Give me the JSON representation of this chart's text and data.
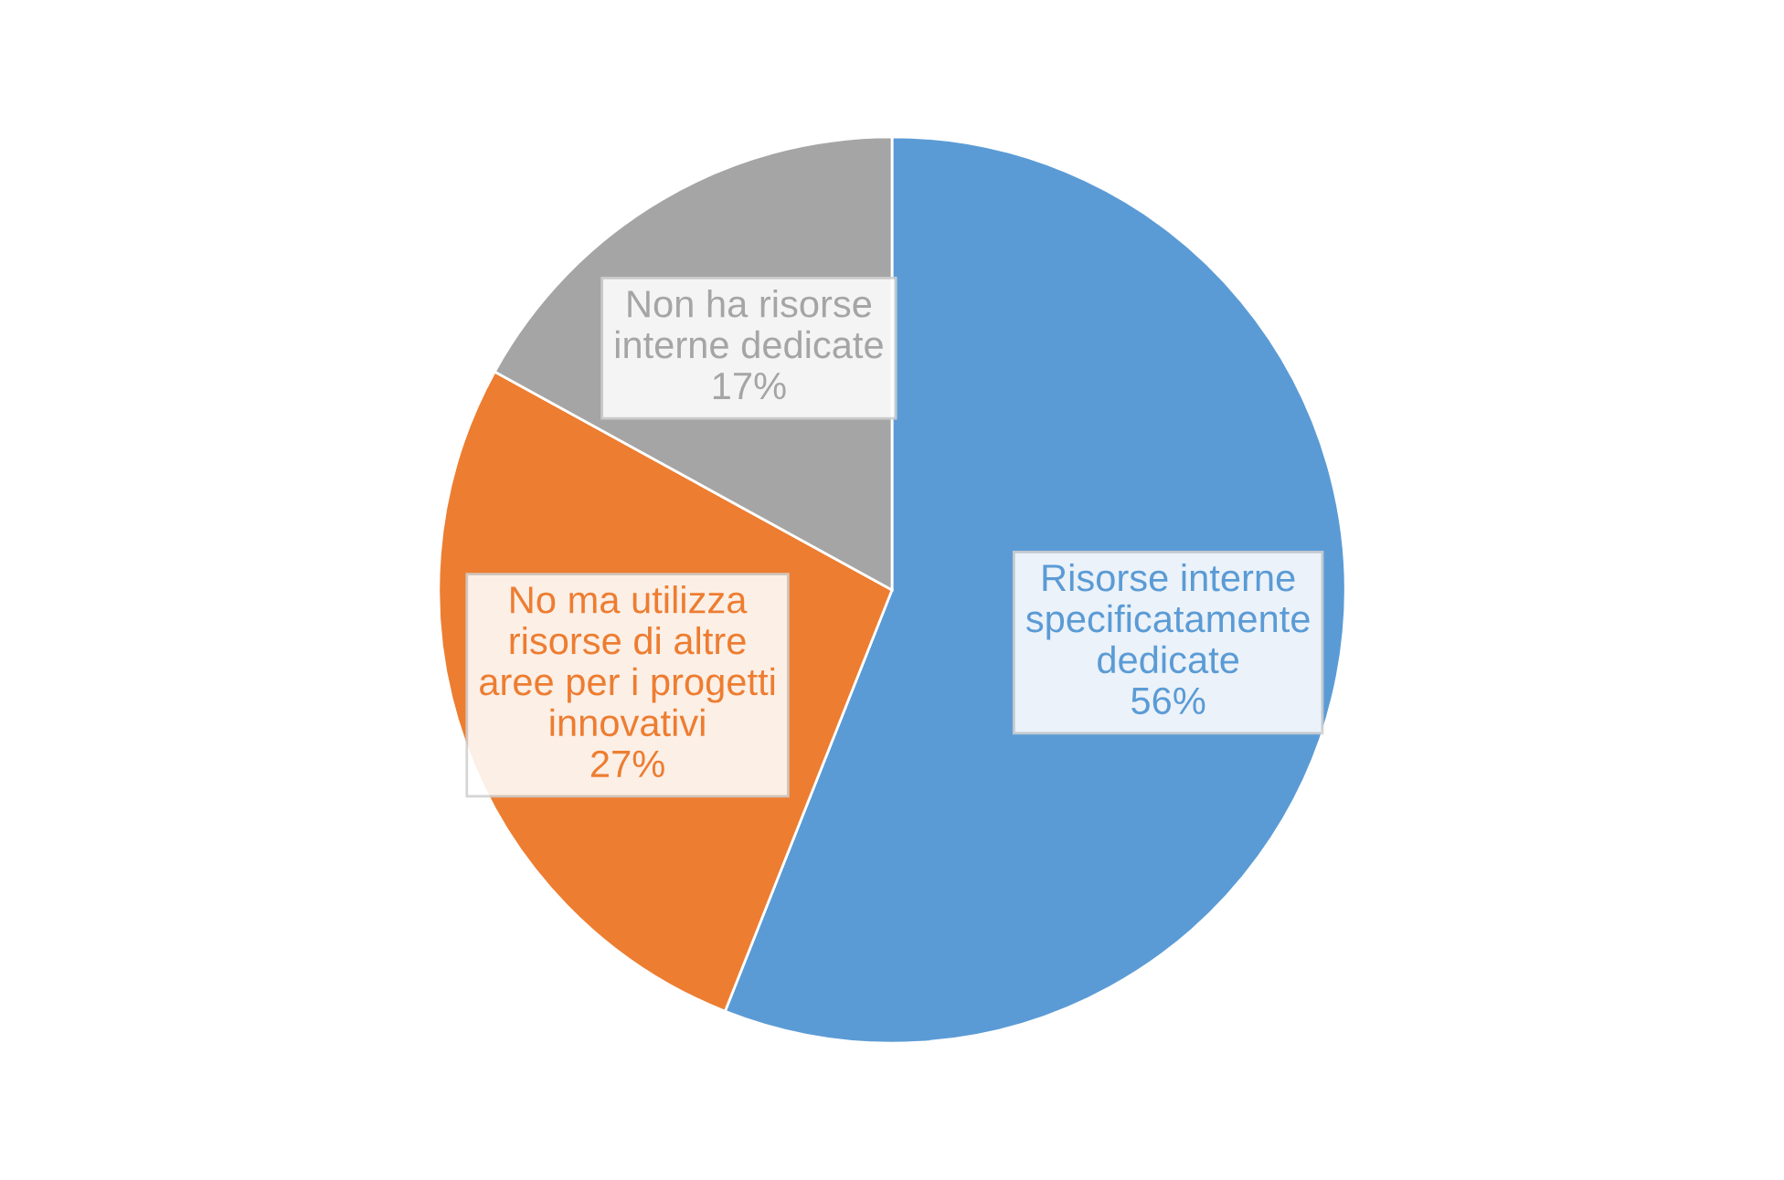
{
  "chart_data": {
    "type": "pie",
    "categories": [
      "Risorse interne\nspecificatamente\ndedicate",
      "No ma utilizza\nrisorse di altre\naree per i progetti\ninnovativi",
      "Non ha risorse\ninterne dedicate"
    ],
    "values": [
      56,
      27,
      17
    ],
    "value_labels": [
      "56%",
      "27%",
      "17%"
    ],
    "colors": [
      "#5b9bd5",
      "#ed7d31",
      "#a5a5a5"
    ],
    "legend": false
  }
}
